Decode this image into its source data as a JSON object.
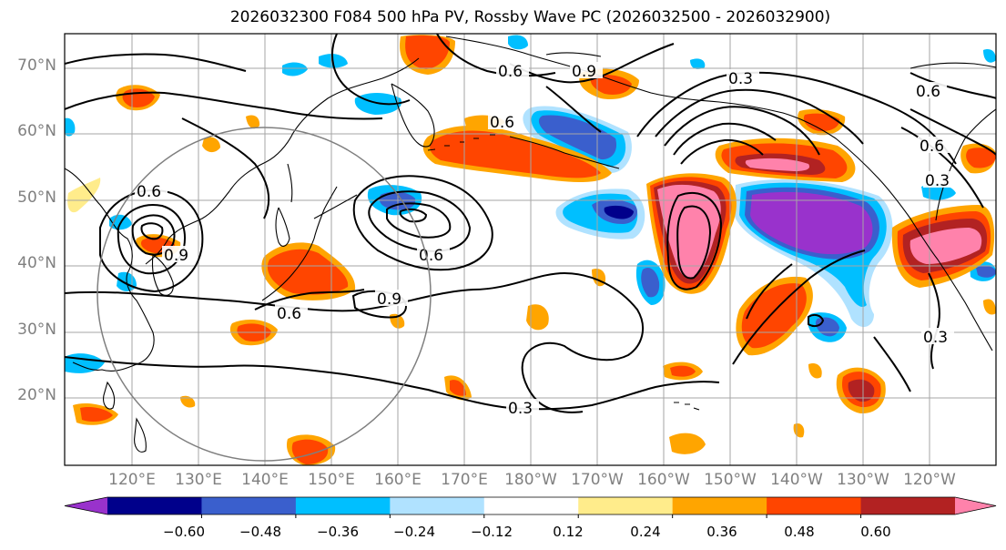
{
  "title": "2026032300 F084 500 hPa PV, Rossby Wave PC (2026032500 - 2026032900)",
  "map": {
    "projection": "PlateCarree",
    "lon_range": [
      "110°E",
      "110°W"
    ],
    "lat_range": [
      "10°N",
      "75°N"
    ],
    "lat_ticks": [
      "70°N",
      "60°N",
      "50°N",
      "40°N",
      "30°N",
      "20°N"
    ],
    "lon_ticks": [
      "120°E",
      "130°E",
      "140°E",
      "150°E",
      "160°E",
      "170°E",
      "180°W",
      "170°W",
      "160°W",
      "150°W",
      "140°W",
      "130°W",
      "120°W"
    ],
    "contour_labels": [
      "0.3",
      "0.6",
      "0.9",
      "0.6",
      "0.3",
      "0.3",
      "0.6",
      "0.9",
      "0.6",
      "0.3"
    ],
    "contour_label_text": {
      "c1": "0.3",
      "c2": "0.3",
      "c3": "0.6",
      "c4": "0.6",
      "c5": "0.6",
      "c6": "0.9",
      "c7": "0.6",
      "c8": "0.3",
      "c9": "0.6",
      "c10": "0.9",
      "c11": "0.6",
      "c12": "0.3",
      "c13": "0.9",
      "c14": "0.6"
    }
  },
  "colorbar": {
    "ticks": [
      "−0.60",
      "−0.48",
      "−0.36",
      "−0.24",
      "−0.12",
      "0.12",
      "0.24",
      "0.36",
      "0.48",
      "0.60"
    ],
    "colors": [
      "#9932cc",
      "#00008b",
      "#3a5fcd",
      "#00bfff",
      "#b0e2ff",
      "#ffffff",
      "#ffec8b",
      "#ffa500",
      "#ff4500",
      "#b22222",
      "#ff82ab"
    ]
  }
}
